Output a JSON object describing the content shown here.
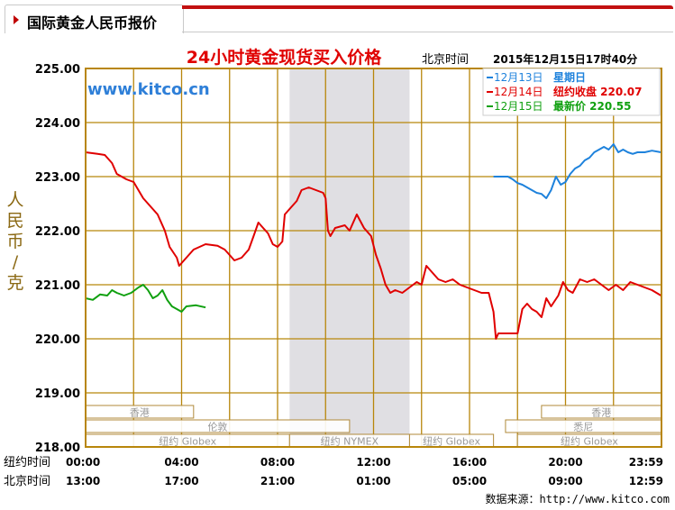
{
  "tab": {
    "title": "国际黄金人民币报价"
  },
  "chart_data": {
    "type": "line",
    "title": "24小时黄金现货买入价格",
    "timestamp_label": "北京时间",
    "timestamp": "2015年12月15日17时40分",
    "watermark": "www.kitco.cn",
    "ylabel": "人民币/克",
    "ylim": [
      218,
      225
    ],
    "yticks": [
      "225.00",
      "224.00",
      "223.00",
      "222.00",
      "221.00",
      "220.00",
      "219.00",
      "218.00"
    ],
    "xaxis_rows": [
      {
        "label": "纽约时间",
        "ticks": [
          "00:00",
          "04:00",
          "08:00",
          "12:00",
          "16:00",
          "20:00",
          "23:59"
        ]
      },
      {
        "label": "北京时间",
        "ticks": [
          "13:00",
          "17:00",
          "21:00",
          "01:00",
          "05:00",
          "09:00",
          "12:59"
        ]
      }
    ],
    "shaded_region": [
      8.5,
      13.5
    ],
    "legend": [
      {
        "label": "12月13日",
        "note": "星期日",
        "color": "#1e82dc"
      },
      {
        "label": "12月14日",
        "note": "纽约收盘 220.07",
        "color": "#e00000"
      },
      {
        "label": "12月15日",
        "note": "最新价 220.55",
        "color": "#10a010"
      }
    ],
    "sessions": [
      {
        "name": "香港",
        "start": 0,
        "end": 4.5
      },
      {
        "name": "伦敦",
        "start": 0,
        "end": 11
      },
      {
        "name": "纽约 Globex",
        "start": 0,
        "end": 8.5
      },
      {
        "name": "纽约 NYMEX",
        "start": 8.5,
        "end": 13.5
      },
      {
        "name": "纽约 Globex",
        "start": 13.5,
        "end": 17
      },
      {
        "name": "香港",
        "start": 19,
        "end": 23.983
      },
      {
        "name": "悉尼",
        "start": 17.5,
        "end": 23.983
      },
      {
        "name": "纽约 Globex",
        "start": 18,
        "end": 23.983
      }
    ],
    "series": [
      {
        "name": "12月14日",
        "color": "#e00000",
        "points": [
          [
            0,
            223.45
          ],
          [
            0.5,
            223.42
          ],
          [
            0.8,
            223.4
          ],
          [
            1.1,
            223.25
          ],
          [
            1.3,
            223.05
          ],
          [
            1.7,
            222.95
          ],
          [
            2.0,
            222.9
          ],
          [
            2.4,
            222.6
          ],
          [
            2.7,
            222.45
          ],
          [
            3.0,
            222.3
          ],
          [
            3.3,
            222.0
          ],
          [
            3.5,
            221.7
          ],
          [
            3.8,
            221.5
          ],
          [
            3.9,
            221.35
          ],
          [
            4.2,
            221.5
          ],
          [
            4.5,
            221.65
          ],
          [
            5.0,
            221.75
          ],
          [
            5.5,
            221.72
          ],
          [
            5.8,
            221.65
          ],
          [
            6.0,
            221.55
          ],
          [
            6.2,
            221.45
          ],
          [
            6.5,
            221.5
          ],
          [
            6.8,
            221.65
          ],
          [
            7.0,
            221.9
          ],
          [
            7.2,
            222.15
          ],
          [
            7.4,
            222.05
          ],
          [
            7.6,
            221.95
          ],
          [
            7.8,
            221.75
          ],
          [
            8.0,
            221.7
          ],
          [
            8.2,
            221.8
          ],
          [
            8.3,
            222.3
          ],
          [
            8.5,
            222.4
          ],
          [
            8.8,
            222.55
          ],
          [
            9.0,
            222.75
          ],
          [
            9.3,
            222.8
          ],
          [
            9.6,
            222.75
          ],
          [
            9.9,
            222.7
          ],
          [
            10.0,
            222.6
          ],
          [
            10.1,
            222.0
          ],
          [
            10.2,
            221.9
          ],
          [
            10.4,
            222.05
          ],
          [
            10.8,
            222.1
          ],
          [
            11.0,
            222.0
          ],
          [
            11.3,
            222.3
          ],
          [
            11.6,
            222.05
          ],
          [
            11.9,
            221.9
          ],
          [
            12.1,
            221.55
          ],
          [
            12.3,
            221.3
          ],
          [
            12.5,
            221.0
          ],
          [
            12.7,
            220.85
          ],
          [
            12.9,
            220.9
          ],
          [
            13.2,
            220.85
          ],
          [
            13.5,
            220.95
          ],
          [
            13.8,
            221.05
          ],
          [
            14.0,
            221.0
          ],
          [
            14.2,
            221.35
          ],
          [
            14.4,
            221.25
          ],
          [
            14.7,
            221.1
          ],
          [
            15.0,
            221.05
          ],
          [
            15.3,
            221.1
          ],
          [
            15.6,
            221.0
          ],
          [
            15.9,
            220.95
          ],
          [
            16.2,
            220.9
          ],
          [
            16.5,
            220.85
          ],
          [
            16.8,
            220.85
          ],
          [
            17.0,
            220.5
          ],
          [
            17.1,
            220.0
          ],
          [
            17.2,
            220.1
          ],
          [
            17.6,
            220.1
          ],
          [
            18.0,
            220.1
          ],
          [
            18.2,
            220.55
          ],
          [
            18.4,
            220.65
          ],
          [
            18.6,
            220.55
          ],
          [
            18.8,
            220.5
          ],
          [
            19.0,
            220.4
          ],
          [
            19.2,
            220.75
          ],
          [
            19.4,
            220.6
          ],
          [
            19.7,
            220.8
          ],
          [
            19.9,
            221.05
          ],
          [
            20.1,
            220.9
          ],
          [
            20.3,
            220.85
          ],
          [
            20.6,
            221.1
          ],
          [
            20.9,
            221.05
          ],
          [
            21.2,
            221.1
          ],
          [
            21.5,
            221.0
          ],
          [
            21.8,
            220.9
          ],
          [
            22.1,
            221.0
          ],
          [
            22.4,
            220.9
          ],
          [
            22.7,
            221.05
          ],
          [
            23.0,
            221.0
          ],
          [
            23.3,
            220.95
          ],
          [
            23.6,
            220.9
          ],
          [
            23.983,
            220.8
          ]
        ]
      },
      {
        "name": "12月15日",
        "color": "#10a010",
        "points": [
          [
            0,
            220.75
          ],
          [
            0.3,
            220.72
          ],
          [
            0.6,
            220.82
          ],
          [
            0.9,
            220.8
          ],
          [
            1.1,
            220.9
          ],
          [
            1.3,
            220.85
          ],
          [
            1.6,
            220.8
          ],
          [
            1.9,
            220.85
          ],
          [
            2.2,
            220.95
          ],
          [
            2.4,
            221.0
          ],
          [
            2.6,
            220.9
          ],
          [
            2.8,
            220.75
          ],
          [
            3.0,
            220.8
          ],
          [
            3.2,
            220.9
          ],
          [
            3.4,
            220.72
          ],
          [
            3.6,
            220.6
          ],
          [
            3.8,
            220.55
          ],
          [
            4.0,
            220.5
          ],
          [
            4.2,
            220.6
          ],
          [
            4.6,
            220.62
          ],
          [
            5.0,
            220.58
          ]
        ]
      },
      {
        "name": "12月13日",
        "color": "#1e82dc",
        "points": [
          [
            17.0,
            223.0
          ],
          [
            17.3,
            223.0
          ],
          [
            17.6,
            223.0
          ],
          [
            17.8,
            222.95
          ],
          [
            18.0,
            222.88
          ],
          [
            18.2,
            222.85
          ],
          [
            18.4,
            222.8
          ],
          [
            18.6,
            222.75
          ],
          [
            18.8,
            222.7
          ],
          [
            19.0,
            222.68
          ],
          [
            19.2,
            222.6
          ],
          [
            19.4,
            222.75
          ],
          [
            19.6,
            223.0
          ],
          [
            19.8,
            222.85
          ],
          [
            20.0,
            222.9
          ],
          [
            20.2,
            223.05
          ],
          [
            20.4,
            223.15
          ],
          [
            20.6,
            223.2
          ],
          [
            20.8,
            223.3
          ],
          [
            21.0,
            223.35
          ],
          [
            21.2,
            223.45
          ],
          [
            21.4,
            223.5
          ],
          [
            21.6,
            223.55
          ],
          [
            21.8,
            223.5
          ],
          [
            22.0,
            223.6
          ],
          [
            22.2,
            223.45
          ],
          [
            22.4,
            223.5
          ],
          [
            22.6,
            223.45
          ],
          [
            22.8,
            223.42
          ],
          [
            23.0,
            223.45
          ],
          [
            23.3,
            223.45
          ],
          [
            23.6,
            223.48
          ],
          [
            23.983,
            223.45
          ]
        ]
      }
    ]
  },
  "footer": {
    "source": "数据来源：http://www.kitco.com"
  }
}
